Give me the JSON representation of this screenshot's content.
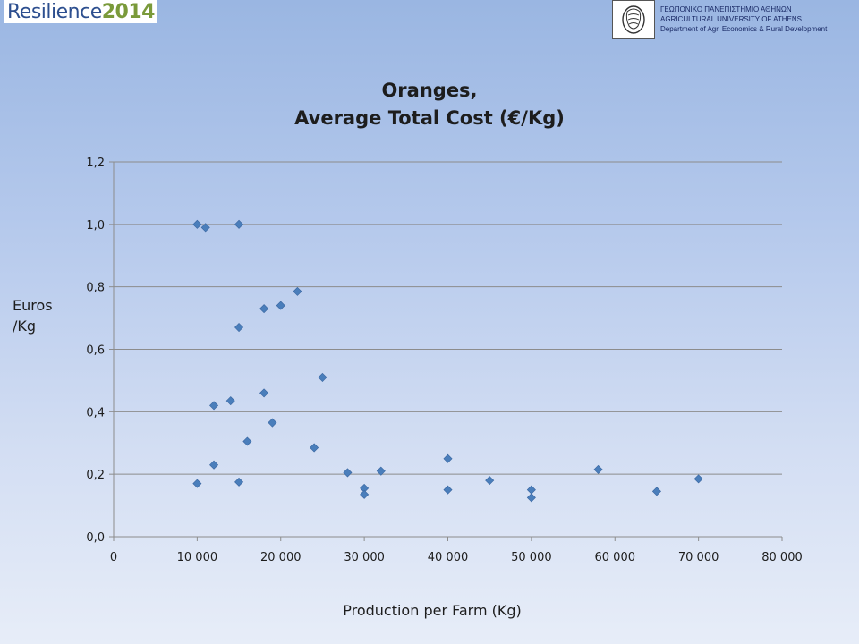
{
  "header": {
    "logo_main": "Resilience",
    "logo_year": "2014",
    "emblem_icon": "university-seal-icon",
    "university_lines": [
      "ΓΕΩΠΟΝΙΚΟ ΠΑΝΕΠΙΣΤΗΜΙΟ ΑΘΗΝΩΝ",
      "AGRICULTURAL UNIVERSITY OF ATHENS",
      "Department of Agr. Economics & Rural Development"
    ]
  },
  "chart_data": {
    "type": "scatter",
    "title_line1": "Oranges,",
    "title_line2": "Average Total Cost (€/Kg)",
    "xlabel": "Production per Farm (Kg)",
    "ylabel_line1": "Euros",
    "ylabel_line2": "/Kg",
    "xlim": [
      0,
      80000
    ],
    "ylim": [
      0,
      1.2
    ],
    "x_ticks": [
      "0",
      "10 000",
      "20 000",
      "30 000",
      "40 000",
      "50 000",
      "60 000",
      "70 000",
      "80 000"
    ],
    "y_ticks": [
      "0,0",
      "0,2",
      "0,4",
      "0,6",
      "0,8",
      "1,0",
      "1,2"
    ],
    "grid": "horizontal",
    "marker_color": "#4a7ebb",
    "points": [
      {
        "x": 10000,
        "y": 1.0
      },
      {
        "x": 11000,
        "y": 0.99
      },
      {
        "x": 15000,
        "y": 1.0
      },
      {
        "x": 22000,
        "y": 0.785
      },
      {
        "x": 20000,
        "y": 0.74
      },
      {
        "x": 18000,
        "y": 0.73
      },
      {
        "x": 15000,
        "y": 0.67
      },
      {
        "x": 25000,
        "y": 0.51
      },
      {
        "x": 18000,
        "y": 0.46
      },
      {
        "x": 14000,
        "y": 0.435
      },
      {
        "x": 12000,
        "y": 0.42
      },
      {
        "x": 19000,
        "y": 0.365
      },
      {
        "x": 16000,
        "y": 0.305
      },
      {
        "x": 24000,
        "y": 0.285
      },
      {
        "x": 40000,
        "y": 0.25
      },
      {
        "x": 12000,
        "y": 0.23
      },
      {
        "x": 58000,
        "y": 0.215
      },
      {
        "x": 32000,
        "y": 0.21
      },
      {
        "x": 28000,
        "y": 0.205
      },
      {
        "x": 70000,
        "y": 0.185
      },
      {
        "x": 45000,
        "y": 0.18
      },
      {
        "x": 15000,
        "y": 0.175
      },
      {
        "x": 10000,
        "y": 0.17
      },
      {
        "x": 30000,
        "y": 0.155
      },
      {
        "x": 40000,
        "y": 0.15
      },
      {
        "x": 50000,
        "y": 0.15
      },
      {
        "x": 65000,
        "y": 0.145
      },
      {
        "x": 30000,
        "y": 0.135
      },
      {
        "x": 50000,
        "y": 0.125
      }
    ]
  }
}
